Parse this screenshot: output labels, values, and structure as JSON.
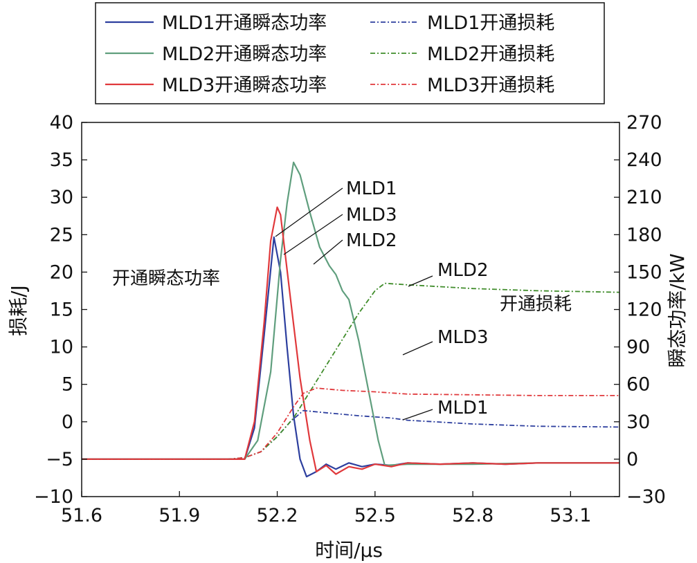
{
  "chart_data": {
    "type": "line",
    "xlabel": "时间/μs",
    "ylabel_left": "损耗/J",
    "ylabel_right": "瞬态功率/kW",
    "xlim": [
      51.6,
      53.25
    ],
    "ylim_left": [
      -10,
      40
    ],
    "ylim_right": [
      -30,
      270
    ],
    "x_ticks": [
      51.6,
      51.9,
      52.2,
      52.5,
      52.8,
      53.1
    ],
    "x_tick_labels": [
      "51.6",
      "51.9",
      "52.2",
      "52.5",
      "52.8",
      "53.1"
    ],
    "y_left_ticks": [
      -10,
      -5,
      0,
      5,
      10,
      15,
      20,
      25,
      30,
      35,
      40
    ],
    "y_left_tick_labels": [
      "−10",
      "−5",
      "0",
      "5",
      "10",
      "15",
      "20",
      "25",
      "30",
      "35",
      "40"
    ],
    "y_right_ticks": [
      -30,
      0,
      30,
      60,
      90,
      120,
      150,
      180,
      210,
      240,
      270
    ],
    "y_right_tick_labels": [
      "−30",
      "0",
      "30",
      "60",
      "90",
      "120",
      "150",
      "180",
      "210",
      "240",
      "270"
    ],
    "colors": {
      "MLD1": "#2c3e9e",
      "MLD2": "#5f9e7d",
      "MLD3": "#e0383b",
      "MLD2_loss": "#3f8c2a"
    },
    "legend": [
      {
        "label": "MLD1开通瞬态功率",
        "style": "solid",
        "color": "#2c3e9e"
      },
      {
        "label": "MLD1开通损耗",
        "style": "dashdot",
        "color": "#2c3e9e"
      },
      {
        "label": "MLD2开通瞬态功率",
        "style": "solid",
        "color": "#5f9e7d"
      },
      {
        "label": "MLD2开通损耗",
        "style": "dashdot",
        "color": "#3f8c2a"
      },
      {
        "label": "MLD3开通瞬态功率",
        "style": "solid",
        "color": "#e0383b"
      },
      {
        "label": "MLD3开通损耗",
        "style": "dashdot",
        "color": "#e0383b"
      }
    ],
    "annotations": {
      "power_group": "开通瞬态功率",
      "loss_group": "开通损耗",
      "power_labels": [
        "MLD1",
        "MLD3",
        "MLD2"
      ],
      "loss_labels": [
        "MLD2",
        "MLD3",
        "MLD1"
      ]
    },
    "series": [
      {
        "name": "MLD1开通瞬态功率",
        "axis": "right",
        "color": "#2c3e9e",
        "style": "solid",
        "x": [
          51.6,
          52.1,
          52.13,
          52.16,
          52.19,
          52.21,
          52.23,
          52.25,
          52.27,
          52.29,
          52.32,
          52.35,
          52.38,
          52.42,
          52.46,
          52.5,
          52.55,
          52.6,
          52.7,
          52.8,
          52.9,
          53.0,
          53.1,
          53.25
        ],
        "y": [
          0,
          0,
          25,
          100,
          178,
          150,
          90,
          35,
          0,
          -14,
          -10,
          -4,
          -8,
          -3,
          -6,
          -4,
          -5,
          -3,
          -4,
          -3,
          -4,
          -3,
          -3,
          -3
        ]
      },
      {
        "name": "MLD2开通瞬态功率",
        "axis": "right",
        "color": "#5f9e7d",
        "style": "solid",
        "x": [
          51.6,
          52.1,
          52.14,
          52.18,
          52.21,
          52.23,
          52.25,
          52.27,
          52.3,
          52.33,
          52.36,
          52.38,
          52.4,
          52.42,
          52.45,
          52.48,
          52.51,
          52.53,
          52.6,
          52.8,
          53.0,
          53.25
        ],
        "y": [
          0,
          0,
          15,
          70,
          160,
          205,
          238,
          228,
          198,
          170,
          155,
          148,
          135,
          128,
          95,
          55,
          15,
          -5,
          -4,
          -4,
          -3,
          -3
        ]
      },
      {
        "name": "MLD3开通瞬态功率",
        "axis": "right",
        "color": "#e0383b",
        "style": "solid",
        "x": [
          51.6,
          52.1,
          52.13,
          52.16,
          52.18,
          52.2,
          52.21,
          52.24,
          52.27,
          52.3,
          52.32,
          52.35,
          52.38,
          52.42,
          52.46,
          52.5,
          52.55,
          52.6,
          52.7,
          52.8,
          52.9,
          53.0,
          53.1,
          53.25
        ],
        "y": [
          0,
          0,
          30,
          110,
          175,
          202,
          196,
          130,
          65,
          15,
          -10,
          -5,
          -12,
          -6,
          -8,
          -4,
          -6,
          -3,
          -4,
          -3,
          -4,
          -3,
          -3,
          -3
        ]
      },
      {
        "name": "MLD1开通损耗",
        "axis": "left",
        "color": "#2c3e9e",
        "style": "dashdot",
        "x": [
          51.6,
          52.05,
          52.1,
          52.15,
          52.2,
          52.24,
          52.28,
          52.35,
          52.45,
          52.55,
          52.6,
          52.8,
          53.0,
          53.25
        ],
        "y": [
          -5,
          -5,
          -4.8,
          -4,
          -2,
          0,
          1.5,
          1.2,
          0.8,
          0.5,
          0.2,
          -0.3,
          -0.6,
          -0.7
        ]
      },
      {
        "name": "MLD2开通损耗",
        "axis": "left",
        "color": "#3f8c2a",
        "style": "dashdot",
        "x": [
          51.6,
          52.05,
          52.1,
          52.15,
          52.2,
          52.25,
          52.3,
          52.35,
          52.4,
          52.45,
          52.5,
          52.53,
          52.6,
          52.8,
          53.0,
          53.25
        ],
        "y": [
          -5,
          -5,
          -4.8,
          -4,
          -2,
          0.5,
          4,
          7.5,
          11,
          14.5,
          17.5,
          18.5,
          18.3,
          17.8,
          17.5,
          17.3
        ]
      },
      {
        "name": "MLD3开通损耗",
        "axis": "left",
        "color": "#e0383b",
        "style": "dashdot",
        "x": [
          51.6,
          52.05,
          52.1,
          52.15,
          52.2,
          52.25,
          52.28,
          52.32,
          52.4,
          52.5,
          52.6,
          52.8,
          53.0,
          53.25
        ],
        "y": [
          -5,
          -5,
          -4.8,
          -4,
          -1.5,
          2,
          3.8,
          4.5,
          4.2,
          4,
          3.7,
          3.6,
          3.5,
          3.5
        ]
      }
    ]
  }
}
